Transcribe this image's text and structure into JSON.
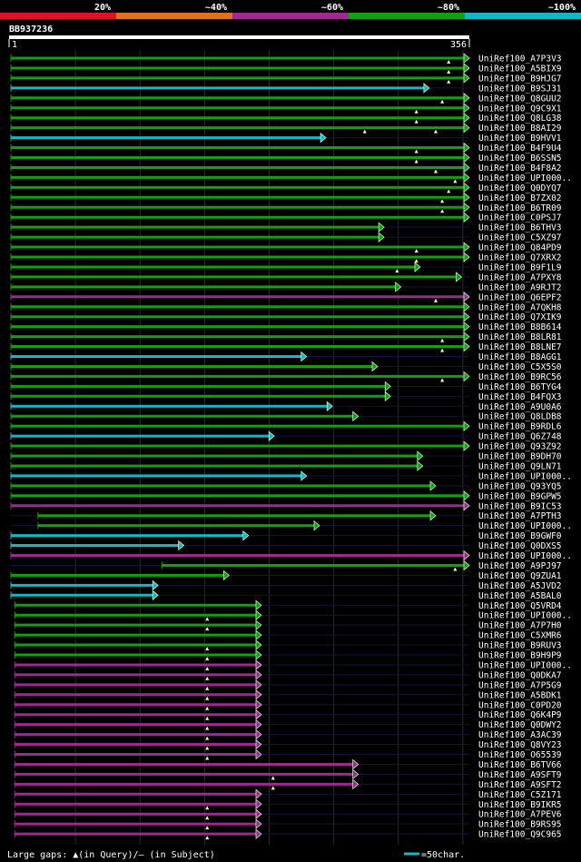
{
  "legend": {
    "labels": [
      "20%",
      "~40%",
      "~60%",
      "~80%",
      "~100%"
    ],
    "colors": [
      "#e0102a",
      "#e0701a",
      "#a02890",
      "#10a010",
      "#10b8c8"
    ]
  },
  "query": {
    "id": "BB937236",
    "start": "1",
    "end": "356"
  },
  "footer": {
    "gaps_text": "Large gaps: ▲(in Query)/— (in Subject)",
    "scale_text": "=50char."
  },
  "chart_data": {
    "type": "alignment-overview",
    "title": "BB937236",
    "query_length": 356,
    "hits": [
      {
        "name": "UniRef100_A7P3V3",
        "start": 1,
        "end": 356,
        "id": "~80%",
        "gapsQ": [
          340
        ]
      },
      {
        "name": "UniRef100_A5BIX9",
        "start": 1,
        "end": 356,
        "id": "~80%",
        "gapsQ": [
          340
        ]
      },
      {
        "name": "UniRef100_B9HJG7",
        "start": 1,
        "end": 356,
        "id": "~80%",
        "gapsQ": [
          340
        ]
      },
      {
        "name": "UniRef100_B9SJ31",
        "start": 1,
        "end": 325,
        "id": "~100%",
        "gapsQ": []
      },
      {
        "name": "UniRef100_Q8GUU2",
        "start": 1,
        "end": 356,
        "id": "~80%",
        "gapsQ": [
          335
        ]
      },
      {
        "name": "UniRef100_Q9C9X1",
        "start": 1,
        "end": 356,
        "id": "~80%",
        "gapsQ": [
          315
        ]
      },
      {
        "name": "UniRef100_Q8LG38",
        "start": 1,
        "end": 356,
        "id": "~80%",
        "gapsQ": [
          315
        ]
      },
      {
        "name": "UniRef100_B8AI29",
        "start": 1,
        "end": 356,
        "id": "~80%",
        "gapsQ": [
          275,
          330
        ]
      },
      {
        "name": "UniRef100_B9HVV1",
        "start": 1,
        "end": 245,
        "id": "~100%",
        "gapsQ": []
      },
      {
        "name": "UniRef100_B4F9U4",
        "start": 1,
        "end": 356,
        "id": "~80%",
        "gapsQ": [
          315
        ]
      },
      {
        "name": "UniRef100_B6SSN5",
        "start": 1,
        "end": 356,
        "id": "~80%",
        "gapsQ": [
          315
        ]
      },
      {
        "name": "UniRef100_B4F8A2",
        "start": 1,
        "end": 356,
        "id": "~80%",
        "gapsQ": [
          330
        ]
      },
      {
        "name": "UniRef100_UPI000..",
        "start": 1,
        "end": 356,
        "id": "~80%",
        "gapsQ": [
          345
        ]
      },
      {
        "name": "UniRef100_Q0DYQ7",
        "start": 1,
        "end": 356,
        "id": "~80%",
        "gapsQ": [
          340
        ]
      },
      {
        "name": "UniRef100_B7ZX02",
        "start": 1,
        "end": 356,
        "id": "~80%",
        "gapsQ": [
          335
        ]
      },
      {
        "name": "UniRef100_B6TR09",
        "start": 1,
        "end": 356,
        "id": "~80%",
        "gapsQ": [
          335
        ]
      },
      {
        "name": "UniRef100_C0PSJ7",
        "start": 1,
        "end": 356,
        "id": "~80%",
        "gapsQ": []
      },
      {
        "name": "UniRef100_B6THV3",
        "start": 1,
        "end": 290,
        "id": "~80%",
        "gapsQ": []
      },
      {
        "name": "UniRef100_C5XZ97",
        "start": 1,
        "end": 290,
        "id": "~80%",
        "gapsQ": []
      },
      {
        "name": "UniRef100_Q84PD9",
        "start": 1,
        "end": 356,
        "id": "~80%",
        "gapsQ": [
          315
        ]
      },
      {
        "name": "UniRef100_Q7XRX2",
        "start": 1,
        "end": 356,
        "id": "~80%",
        "gapsQ": [
          315
        ]
      },
      {
        "name": "UniRef100_B9F1L9",
        "start": 1,
        "end": 318,
        "id": "~80%",
        "gapsQ": [
          300
        ]
      },
      {
        "name": "UniRef100_A7PXY8",
        "start": 1,
        "end": 350,
        "id": "~80%",
        "gapsQ": []
      },
      {
        "name": "UniRef100_A9RJT2",
        "start": 1,
        "end": 303,
        "id": "~80%",
        "gapsQ": []
      },
      {
        "name": "UniRef100_Q6EPF2",
        "start": 1,
        "end": 356,
        "id": "~60%",
        "gapsQ": [
          330
        ]
      },
      {
        "name": "UniRef100_A7QKH8",
        "start": 1,
        "end": 356,
        "id": "~80%",
        "gapsQ": []
      },
      {
        "name": "UniRef100_Q7XIK9",
        "start": 1,
        "end": 356,
        "id": "~80%",
        "gapsQ": []
      },
      {
        "name": "UniRef100_B8B614",
        "start": 1,
        "end": 356,
        "id": "~80%",
        "gapsQ": []
      },
      {
        "name": "UniRef100_B8LR81",
        "start": 1,
        "end": 356,
        "id": "~80%",
        "gapsQ": [
          335
        ]
      },
      {
        "name": "UniRef100_B8LNE7",
        "start": 1,
        "end": 356,
        "id": "~80%",
        "gapsQ": [
          335
        ]
      },
      {
        "name": "UniRef100_B8AGG1",
        "start": 1,
        "end": 230,
        "id": "~100%",
        "gapsQ": []
      },
      {
        "name": "UniRef100_C5X5S0",
        "start": 1,
        "end": 285,
        "id": "~80%",
        "gapsQ": []
      },
      {
        "name": "UniRef100_B9RC56",
        "start": 1,
        "end": 356,
        "id": "~80%",
        "gapsQ": [
          335
        ]
      },
      {
        "name": "UniRef100_B6TYG4",
        "start": 1,
        "end": 295,
        "id": "~80%",
        "gapsQ": []
      },
      {
        "name": "UniRef100_B4FQX3",
        "start": 1,
        "end": 295,
        "id": "~80%",
        "gapsQ": []
      },
      {
        "name": "UniRef100_A9U0A6",
        "start": 1,
        "end": 250,
        "id": "~100%",
        "gapsQ": []
      },
      {
        "name": "UniRef100_Q8LDB8",
        "start": 1,
        "end": 270,
        "id": "~80%",
        "gapsQ": []
      },
      {
        "name": "UniRef100_B9RDL6",
        "start": 1,
        "end": 356,
        "id": "~80%",
        "gapsQ": []
      },
      {
        "name": "UniRef100_Q6Z748",
        "start": 1,
        "end": 205,
        "id": "~100%",
        "gapsQ": []
      },
      {
        "name": "UniRef100_Q93Z92",
        "start": 1,
        "end": 356,
        "id": "~80%",
        "gapsQ": []
      },
      {
        "name": "UniRef100_B9DH70",
        "start": 1,
        "end": 320,
        "id": "~80%",
        "gapsQ": []
      },
      {
        "name": "UniRef100_Q9LN71",
        "start": 1,
        "end": 320,
        "id": "~80%",
        "gapsQ": []
      },
      {
        "name": "UniRef100_UPI000..",
        "start": 1,
        "end": 230,
        "id": "~100%",
        "gapsQ": []
      },
      {
        "name": "UniRef100_Q93YQ5",
        "start": 1,
        "end": 330,
        "id": "~80%",
        "gapsQ": []
      },
      {
        "name": "UniRef100_B9GPW5",
        "start": 1,
        "end": 356,
        "id": "~80%",
        "gapsQ": []
      },
      {
        "name": "UniRef100_B9IC53",
        "start": 1,
        "end": 356,
        "id": "~60%",
        "gapsQ": []
      },
      {
        "name": "UniRef100_A7PTH3",
        "start": 22,
        "end": 330,
        "id": "~80%",
        "gapsQ": []
      },
      {
        "name": "UniRef100_UPI000..",
        "start": 22,
        "end": 240,
        "id": "~80%",
        "gapsQ": []
      },
      {
        "name": "UniRef100_B9GWF0",
        "start": 1,
        "end": 185,
        "id": "~100%",
        "gapsQ": []
      },
      {
        "name": "UniRef100_Q0DXS5",
        "start": 1,
        "end": 135,
        "id": "~100%",
        "gapsQ": []
      },
      {
        "name": "UniRef100_UPI000..",
        "start": 1,
        "end": 356,
        "id": "~60%",
        "gapsQ": []
      },
      {
        "name": "UniRef100_A9PJ97",
        "start": 118,
        "end": 356,
        "id": "~80%",
        "gapsQ": [
          345
        ]
      },
      {
        "name": "UniRef100_Q9ZUA1",
        "start": 1,
        "end": 170,
        "id": "~80%",
        "gapsQ": []
      },
      {
        "name": "UniRef100_A5JVD2",
        "start": 1,
        "end": 115,
        "id": "~100%",
        "gapsQ": []
      },
      {
        "name": "UniRef100_A5BAL0",
        "start": 1,
        "end": 115,
        "id": "~100%",
        "gapsQ": []
      },
      {
        "name": "UniRef100_Q5VRD4",
        "start": 4,
        "end": 195,
        "id": "~80%",
        "gapsQ": []
      },
      {
        "name": "UniRef100_UPI000..",
        "start": 4,
        "end": 195,
        "id": "~80%",
        "gapsQ": [
          153
        ]
      },
      {
        "name": "UniRef100_A7P7H0",
        "start": 4,
        "end": 195,
        "id": "~80%",
        "gapsQ": [
          153
        ]
      },
      {
        "name": "UniRef100_C5XMR6",
        "start": 4,
        "end": 195,
        "id": "~80%",
        "gapsQ": []
      },
      {
        "name": "UniRef100_B9RUV3",
        "start": 4,
        "end": 195,
        "id": "~80%",
        "gapsQ": [
          153
        ]
      },
      {
        "name": "UniRef100_B9H9P9",
        "start": 4,
        "end": 195,
        "id": "~80%",
        "gapsQ": [
          153
        ]
      },
      {
        "name": "UniRef100_UPI000..",
        "start": 4,
        "end": 195,
        "id": "~60%",
        "gapsQ": [
          153
        ]
      },
      {
        "name": "UniRef100_Q0DKA7",
        "start": 4,
        "end": 195,
        "id": "~60%",
        "gapsQ": [
          153
        ]
      },
      {
        "name": "UniRef100_A7P5G9",
        "start": 4,
        "end": 195,
        "id": "~60%",
        "gapsQ": [
          153
        ]
      },
      {
        "name": "UniRef100_A5BDK1",
        "start": 4,
        "end": 195,
        "id": "~60%",
        "gapsQ": [
          153
        ]
      },
      {
        "name": "UniRef100_C0PD20",
        "start": 4,
        "end": 195,
        "id": "~60%",
        "gapsQ": [
          153
        ]
      },
      {
        "name": "UniRef100_Q6K4P9",
        "start": 4,
        "end": 195,
        "id": "~60%",
        "gapsQ": [
          153
        ]
      },
      {
        "name": "UniRef100_Q0DWY2",
        "start": 4,
        "end": 195,
        "id": "~60%",
        "gapsQ": [
          153
        ]
      },
      {
        "name": "UniRef100_A3AC39",
        "start": 4,
        "end": 195,
        "id": "~60%",
        "gapsQ": [
          153
        ]
      },
      {
        "name": "UniRef100_Q8VY23",
        "start": 4,
        "end": 195,
        "id": "~60%",
        "gapsQ": [
          153
        ]
      },
      {
        "name": "UniRef100_O65539",
        "start": 4,
        "end": 195,
        "id": "~60%",
        "gapsQ": [
          153
        ]
      },
      {
        "name": "UniRef100_B6TV66",
        "start": 4,
        "end": 270,
        "id": "~60%",
        "gapsQ": []
      },
      {
        "name": "UniRef100_A9SFT9",
        "start": 4,
        "end": 270,
        "id": "~60%",
        "gapsQ": [
          204
        ]
      },
      {
        "name": "UniRef100_A9SFT2",
        "start": 4,
        "end": 270,
        "id": "~60%",
        "gapsQ": [
          204
        ]
      },
      {
        "name": "UniRef100_C5Z171",
        "start": 4,
        "end": 195,
        "id": "~60%",
        "gapsQ": []
      },
      {
        "name": "UniRef100_B9IKR5",
        "start": 4,
        "end": 195,
        "id": "~60%",
        "gapsQ": [
          153
        ]
      },
      {
        "name": "UniRef100_A7PEV6",
        "start": 4,
        "end": 195,
        "id": "~60%",
        "gapsQ": [
          153
        ]
      },
      {
        "name": "UniRef100_B9RS95",
        "start": 4,
        "end": 195,
        "id": "~60%",
        "gapsQ": [
          153
        ]
      },
      {
        "name": "UniRef100_Q9C965",
        "start": 4,
        "end": 195,
        "id": "~60%",
        "gapsQ": [
          153
        ]
      }
    ]
  }
}
